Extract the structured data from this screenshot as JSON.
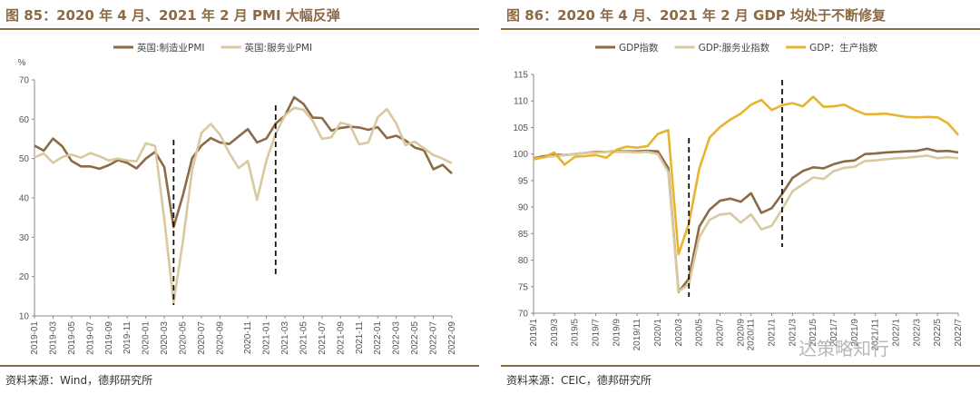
{
  "panels": {
    "left": {
      "title": "图 85：2020 年 4 月、2021 年 2 月 PMI 大幅反弹",
      "source": "资料来源：Wind，德邦研究所"
    },
    "right": {
      "title": "图 86：2020 年 4 月、2021 年 2 月 GDP 均处于不断修复",
      "source": "资料来源：CEIC，德邦研究所"
    }
  },
  "watermark": "达策略知行",
  "chart_data": [
    {
      "type": "line",
      "title": "图 85：2020 年 4 月、2021 年 2 月 PMI 大幅反弹",
      "ylabel": "%",
      "ylim": [
        10,
        70
      ],
      "yticks": [
        10,
        20,
        30,
        40,
        50,
        60,
        70
      ],
      "x_labels": [
        "2019-01",
        "2019-03",
        "2019-05",
        "2019-07",
        "2019-09",
        "2019-11",
        "2020-01",
        "2020-03",
        "2020-05",
        "2020-07",
        "2020-09",
        "2020-11",
        "2021-01",
        "2021-03",
        "2021-05",
        "2021-07",
        "2021-09",
        "2021-11",
        "2022-01",
        "2022-03",
        "2022-05",
        "2022-07",
        "2022-09"
      ],
      "series": [
        {
          "name": "英国:制造业PMI",
          "color": "#8c6a45",
          "values": [
            53.3,
            52.0,
            55.1,
            53.1,
            49.4,
            48.0,
            48.0,
            47.4,
            48.3,
            49.6,
            48.9,
            47.5,
            50.0,
            51.7,
            47.8,
            32.6,
            40.7,
            50.1,
            53.3,
            55.2,
            54.1,
            53.7,
            55.6,
            57.5,
            54.1,
            55.1,
            58.9,
            60.9,
            65.6,
            63.9,
            60.4,
            60.3,
            57.1,
            57.8,
            58.1,
            57.9,
            57.3,
            58.0,
            55.2,
            55.8,
            54.6,
            52.8,
            52.1,
            47.3,
            48.4,
            46.2
          ]
        },
        {
          "name": "英国:服务业PMI",
          "color": "#d9c9a0",
          "values": [
            50.3,
            51.3,
            48.9,
            50.4,
            51.0,
            50.2,
            51.4,
            50.6,
            49.5,
            50.0,
            49.5,
            49.3,
            53.9,
            53.2,
            34.5,
            13.4,
            29.0,
            47.1,
            56.5,
            58.8,
            56.1,
            51.4,
            47.6,
            49.4,
            39.5,
            49.5,
            56.3,
            61.0,
            62.9,
            62.4,
            59.6,
            55.0,
            55.4,
            59.1,
            58.5,
            53.6,
            54.1,
            60.5,
            62.6,
            58.9,
            53.4,
            54.3,
            52.6,
            50.9,
            50.0,
            48.8
          ]
        },
        {
          "name": "_marker_2020_04",
          "color": "#000000",
          "values": []
        }
      ],
      "markers": [
        "2020-04",
        "2021-02"
      ]
    },
    {
      "type": "line",
      "title": "图 86：2020 年 4 月、2021 年 2 月 GDP 均处于不断修复",
      "ylabel": "",
      "ylim": [
        70,
        115
      ],
      "yticks": [
        70,
        75,
        80,
        85,
        90,
        95,
        100,
        105,
        110,
        115
      ],
      "x_labels": [
        "2019/1",
        "2019/3",
        "2019/5",
        "2019/7",
        "2019/9",
        "2019/11",
        "2020/1",
        "2020/3",
        "2020/5",
        "2020/7",
        "2020/9",
        "2020/11",
        "2021/1",
        "2021/3",
        "2021/5",
        "2021/7",
        "2021/9",
        "2021/11",
        "2022/1",
        "2022/3",
        "2022/5",
        "2022/7"
      ],
      "series": [
        {
          "name": "GDP指数",
          "color": "#8c6a45",
          "values": [
            99.2,
            99.6,
            99.9,
            99.8,
            100.0,
            100.2,
            100.4,
            100.4,
            100.5,
            100.5,
            100.5,
            100.6,
            100.5,
            97.4,
            74.0,
            76.5,
            86.3,
            89.5,
            91.2,
            91.6,
            91.0,
            92.6,
            88.9,
            89.8,
            92.5,
            95.5,
            96.8,
            97.5,
            97.3,
            98.1,
            98.6,
            98.8,
            100.0,
            100.1,
            100.3,
            100.4,
            100.5,
            100.6,
            101.0,
            100.5,
            100.6,
            100.3
          ]
        },
        {
          "name": "GDP:服务业指数",
          "color": "#d9c9a0",
          "values": [
            99.1,
            99.4,
            99.6,
            99.8,
            100.0,
            100.2,
            100.3,
            100.4,
            100.4,
            100.4,
            100.3,
            100.4,
            100.0,
            96.6,
            74.1,
            75.5,
            84.3,
            87.6,
            88.6,
            88.8,
            87.1,
            88.6,
            85.8,
            86.5,
            89.6,
            93.0,
            94.3,
            95.6,
            95.3,
            96.8,
            97.4,
            97.6,
            98.7,
            98.8,
            99.0,
            99.2,
            99.3,
            99.5,
            99.7,
            99.2,
            99.4,
            99.2
          ]
        },
        {
          "name": "GDP：生产指数",
          "color": "#e8b430",
          "values": [
            99.0,
            99.4,
            100.3,
            98.0,
            99.5,
            99.6,
            99.8,
            99.3,
            100.8,
            101.4,
            101.2,
            101.5,
            103.8,
            104.5,
            81.1,
            86.9,
            97.2,
            103.1,
            105.1,
            106.5,
            107.6,
            109.3,
            110.2,
            108.3,
            109.2,
            109.6,
            109.0,
            110.8,
            108.9,
            109.0,
            109.3,
            108.3,
            107.5,
            107.5,
            107.6,
            107.3,
            107.0,
            106.9,
            107.0,
            106.9,
            105.8,
            103.6
          ]
        }
      ],
      "markers": [
        "2020/4",
        "2021/2"
      ]
    }
  ]
}
